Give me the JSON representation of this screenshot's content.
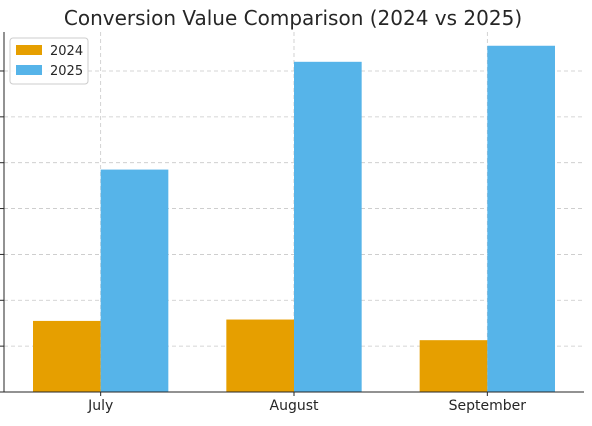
{
  "chart_data": {
    "type": "bar",
    "title": "Conversion Value Comparison (2024 vs 2025)",
    "xlabel": "",
    "ylabel": "",
    "categories": [
      "July",
      "August",
      "September"
    ],
    "series": [
      {
        "name": "2024",
        "color": "#E69F00",
        "values": [
          15.5,
          15.8,
          11.3
        ]
      },
      {
        "name": "2025",
        "color": "#56B4E9",
        "values": [
          48.5,
          72.0,
          75.5
        ]
      }
    ],
    "ylim": [
      0,
      78.5
    ],
    "ytick_values": [
      0,
      10,
      20,
      30,
      40,
      50,
      60,
      70
    ],
    "ytick_labels_visible": false,
    "grid": true,
    "legend_position": "top-left"
  }
}
